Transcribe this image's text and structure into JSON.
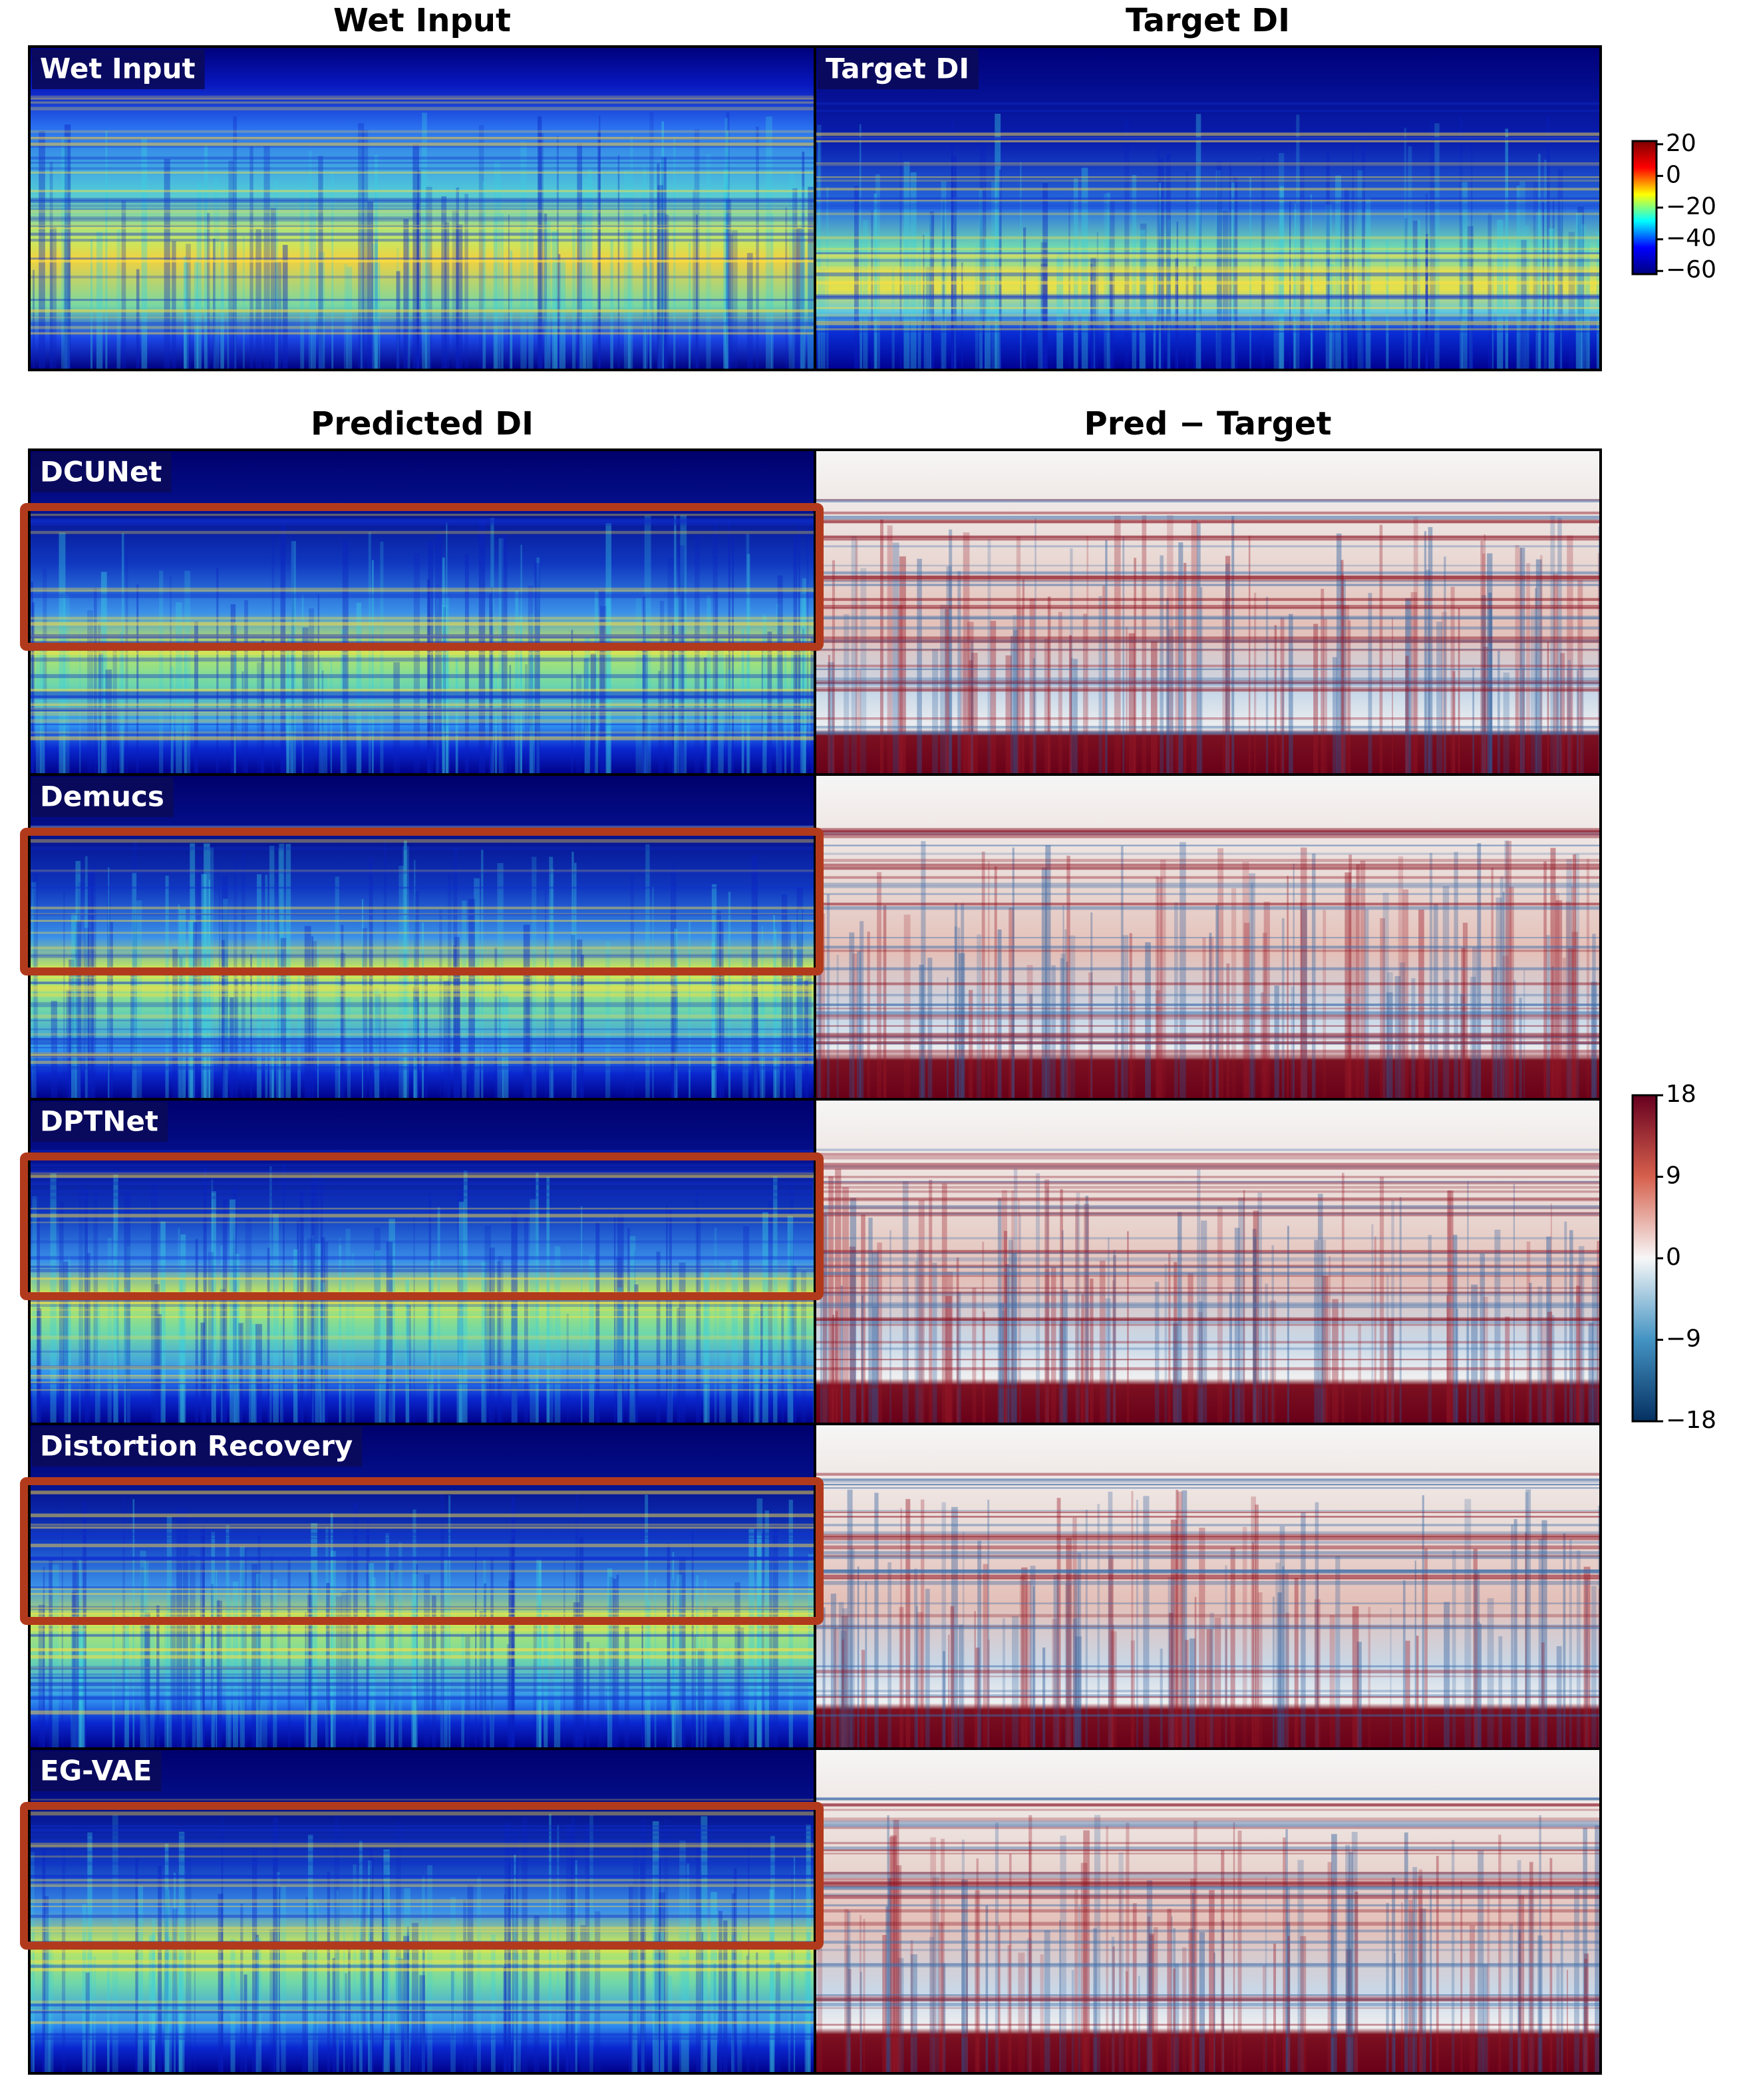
{
  "column_titles": {
    "top": [
      "Wet Input",
      "Target DI"
    ],
    "bottom": [
      "Predicted DI",
      "Pred − Target"
    ]
  },
  "top_panels": [
    "Wet Input",
    "Target DI"
  ],
  "rows": [
    "DCUNet",
    "Demucs",
    "DPTNet",
    "Distortion Recovery",
    "EG-VAE"
  ],
  "colorbars": [
    {
      "colormap": "jet",
      "lim": [
        -62,
        22
      ],
      "ticks": [
        20,
        0,
        {
          "value": -20,
          "label": "−20"
        },
        {
          "value": -40,
          "label": "−40"
        },
        {
          "value": -60,
          "label": "−60"
        }
      ]
    },
    {
      "colormap": "RdBu_r",
      "lim": [
        -18,
        18
      ],
      "ticks": [
        18,
        9,
        0,
        {
          "value": -9,
          "label": "−9"
        },
        {
          "value": -18,
          "label": "−18"
        }
      ]
    }
  ]
}
